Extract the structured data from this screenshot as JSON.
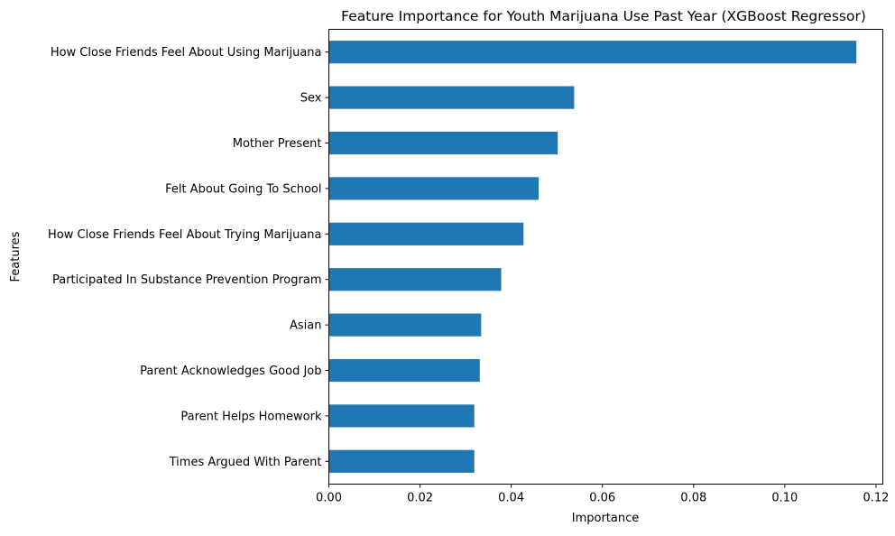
{
  "chart_data": {
    "type": "bar",
    "orientation": "horizontal",
    "title": "Feature Importance for Youth Marijuana Use Past Year (XGBoost Regressor)",
    "xlabel": "Importance",
    "ylabel": "Features",
    "xlim": [
      0,
      0.1215
    ],
    "xticks": [
      0.0,
      0.02,
      0.04,
      0.06,
      0.08,
      0.1,
      0.12
    ],
    "xtick_labels": [
      "0.00",
      "0.02",
      "0.04",
      "0.06",
      "0.08",
      "0.10",
      "0.12"
    ],
    "categories": [
      "How Close Friends Feel About Using Marijuana",
      "Sex",
      "Mother Present",
      "Felt About Going To School",
      "How Close Friends Feel About Trying Marijuana",
      "Participated In Substance Prevention Program",
      "Asian",
      "Parent Acknowledges Good Job",
      "Parent Helps Homework",
      "Times Argued With Parent"
    ],
    "values": [
      0.1157,
      0.0538,
      0.0502,
      0.046,
      0.0427,
      0.0378,
      0.0334,
      0.0331,
      0.0319,
      0.0319
    ],
    "bar_color": "#1f77b4",
    "grid": false,
    "legend": "none"
  }
}
